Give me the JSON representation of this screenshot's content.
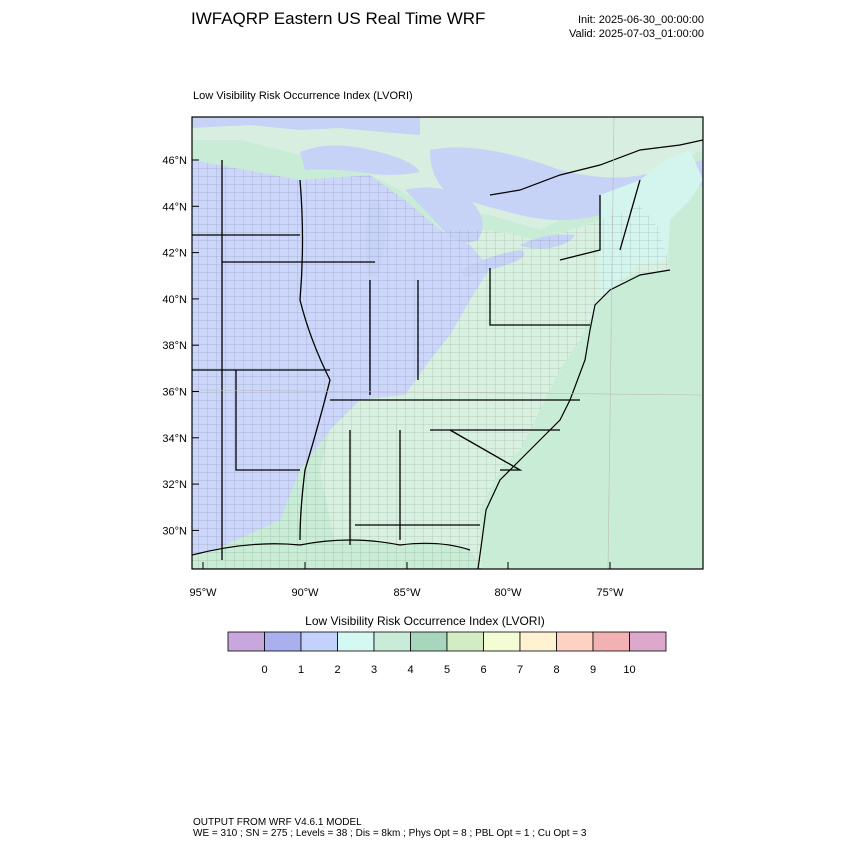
{
  "header": {
    "title": "IWFAQRP Eastern US Real Time WRF",
    "init": "Init: 2025-06-30_00:00:00",
    "valid": "Valid: 2025-07-03_01:00:00"
  },
  "map": {
    "panel_title": "Low Visibility Risk Occurrence Index   (LVORI)",
    "lat_labels": [
      "46°N",
      "44°N",
      "42°N",
      "40°N",
      "38°N",
      "36°N",
      "34°N",
      "32°N",
      "30°N"
    ],
    "lon_labels": [
      "95°W",
      "90°W",
      "85°W",
      "80°W",
      "75°W"
    ],
    "colors": {
      "land_low": "#cbd6fa",
      "land_mid": "#d7f0df",
      "ocean": "#c9ecd6",
      "lakes": "#c6d2f6",
      "border": "#000000"
    }
  },
  "colorbar": {
    "title": "Low Visibility Risk Occurrence Index  (LVORI)",
    "tick_labels": [
      "0",
      "1",
      "2",
      "3",
      "4",
      "5",
      "6",
      "7",
      "8",
      "9",
      "10"
    ],
    "colors": [
      "#c8a8dc",
      "#aab0ee",
      "#c2d2fa",
      "#d4f8f2",
      "#c9ecd8",
      "#a8d6bc",
      "#d4ecc4",
      "#f4fcd4",
      "#fff2d2",
      "#fcd2c2",
      "#f2b2b2",
      "#dca8cc"
    ]
  },
  "footer": {
    "line1": "OUTPUT FROM WRF V4.6.1 MODEL",
    "line2": "WE = 310 ; SN = 275 ; Levels = 38 ; Dis = 8km ; Phys Opt = 8 ; PBL Opt = 1 ; Cu Opt = 3"
  }
}
